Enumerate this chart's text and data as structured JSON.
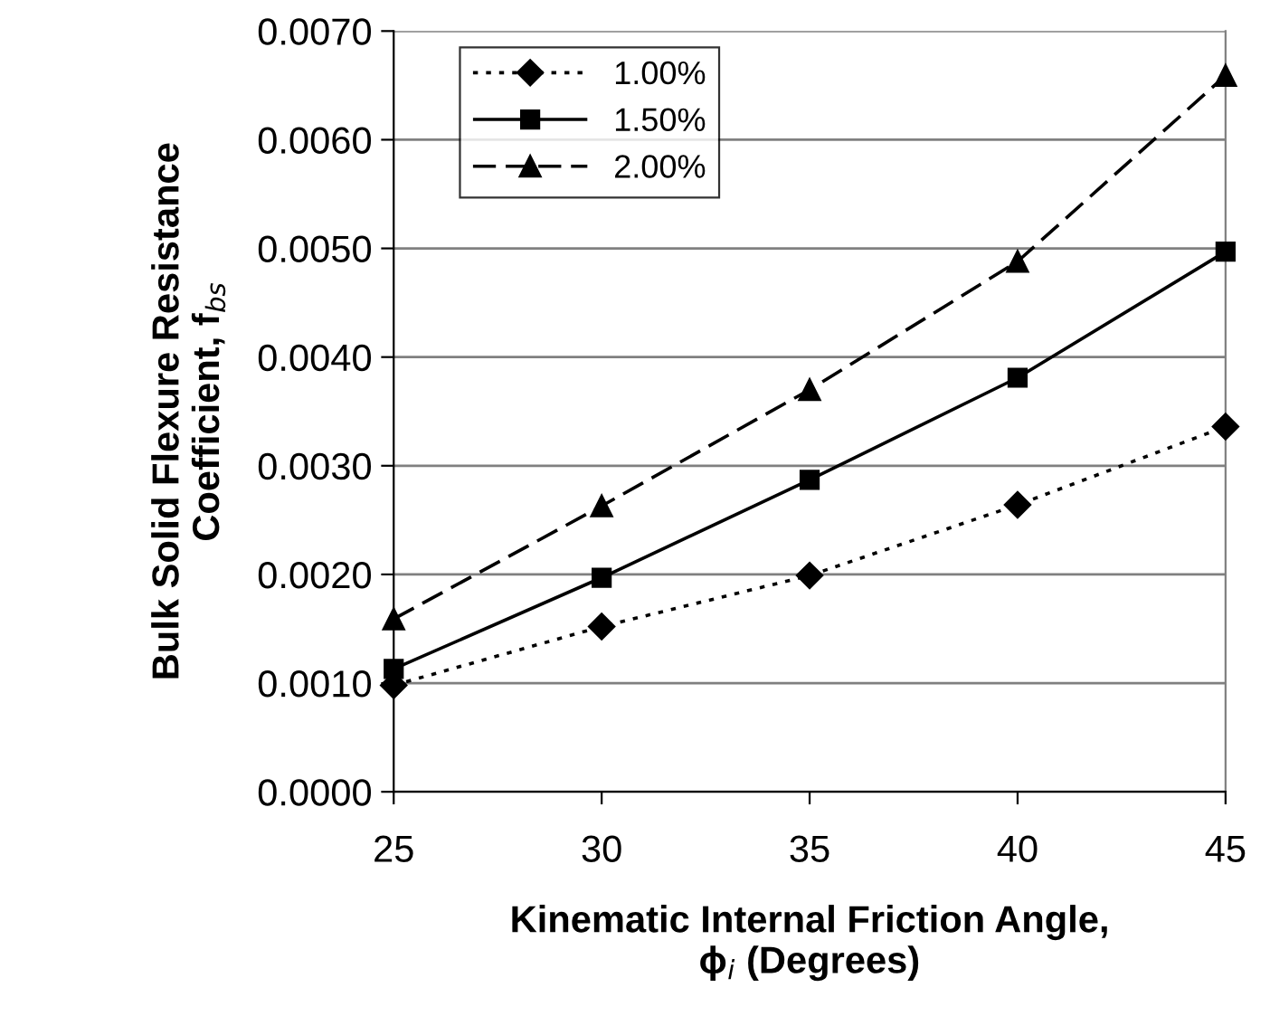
{
  "chart_data": {
    "type": "line",
    "xlabel": "Kinematic Internal Friction Angle,\nϕ$_{i}$ (Degrees)",
    "ylabel": "Bulk Solid Flexure Resistance\nCoefficient, f$_{bs}$",
    "x": [
      25,
      30,
      35,
      40,
      45
    ],
    "series": [
      {
        "name": "1.00%",
        "color": "#000000",
        "marker": "diamond",
        "line_style": "dotted",
        "values": [
          0.00098,
          0.00152,
          0.00199,
          0.00264,
          0.00336
        ]
      },
      {
        "name": "1.50%",
        "color": "#000000",
        "marker": "square",
        "line_style": "solid",
        "values": [
          0.00113,
          0.00197,
          0.00287,
          0.00381,
          0.00497
        ]
      },
      {
        "name": "2.00%",
        "color": "#000000",
        "marker": "triangle",
        "line_style": "dashed",
        "values": [
          0.00159,
          0.00263,
          0.0037,
          0.00488,
          0.00659
        ]
      }
    ],
    "xlim": [
      25,
      45
    ],
    "xticks": [
      25,
      30,
      35,
      40,
      45
    ],
    "ylim": [
      0,
      0.007
    ],
    "yticks": [
      {
        "value": 0,
        "label": "0.0000"
      },
      {
        "value": 0.001,
        "label": "0.0010"
      },
      {
        "value": 0.002,
        "label": "0.0020"
      },
      {
        "value": 0.003,
        "label": "0.0030"
      },
      {
        "value": 0.004,
        "label": "0.0040"
      },
      {
        "value": 0.005,
        "label": "0.0050"
      },
      {
        "value": 0.006,
        "label": "0.0060"
      },
      {
        "value": 0.007,
        "label": "0.0070"
      }
    ],
    "grid": "y",
    "legend": "top left"
  }
}
